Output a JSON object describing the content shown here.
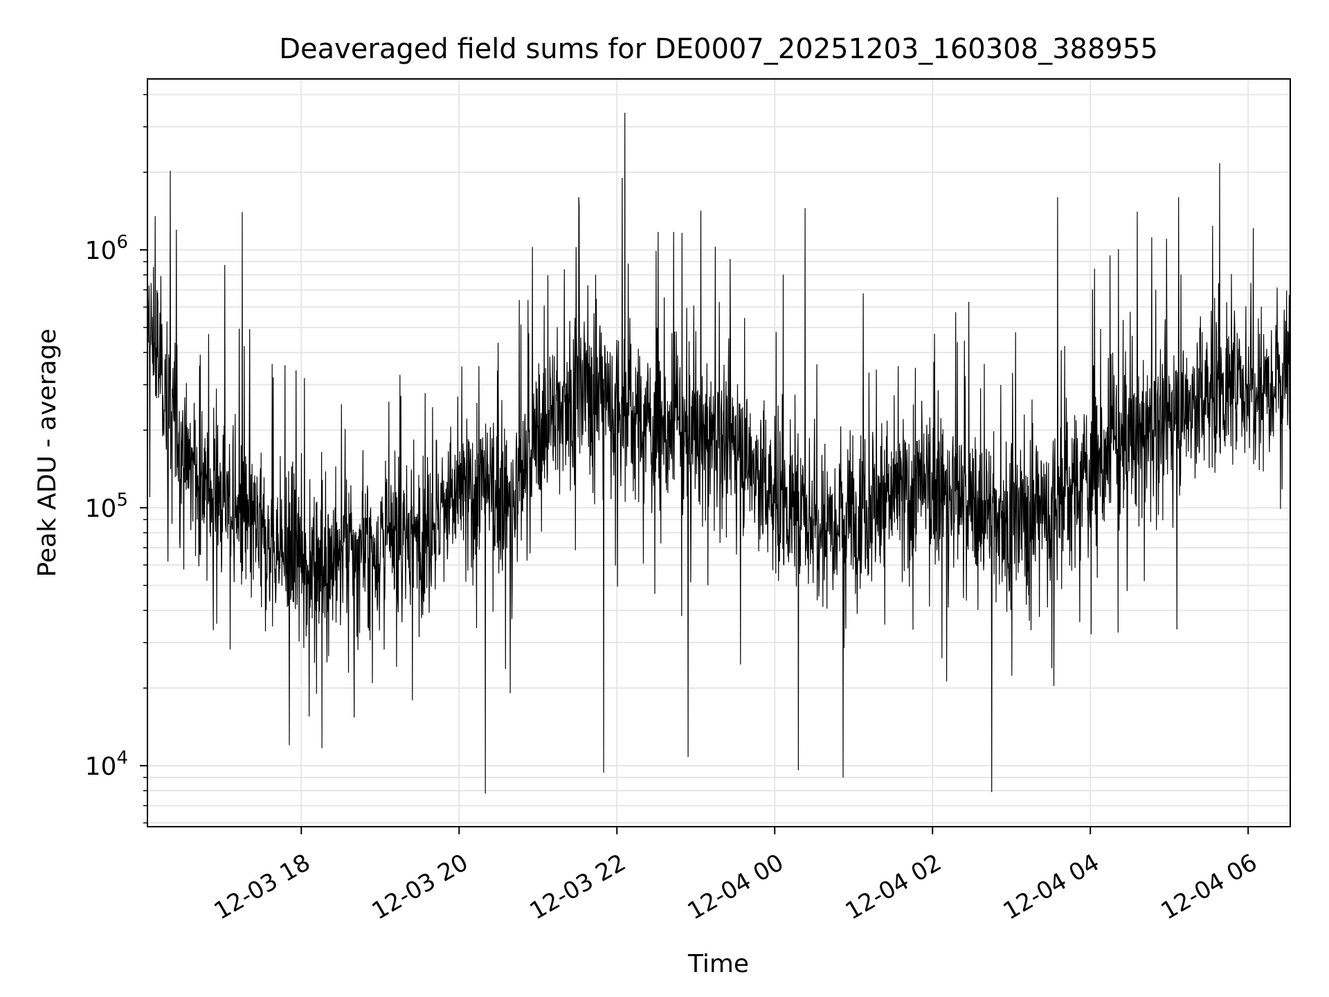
{
  "chart_data": {
    "type": "line",
    "title": "Deaveraged field sums for DE0007_20251203_160308_388955",
    "xlabel": "Time",
    "ylabel": "Peak ADU - average",
    "y_scale": "log",
    "xlim": [
      "2025-12-03 16:03",
      "2025-12-04 06:32"
    ],
    "ylim": [
      5800,
      4600000
    ],
    "x_ticks": [
      {
        "t": "2025-12-03 18:00",
        "label": "12-03 18"
      },
      {
        "t": "2025-12-03 20:00",
        "label": "12-03 20"
      },
      {
        "t": "2025-12-03 22:00",
        "label": "12-03 22"
      },
      {
        "t": "2025-12-04 00:00",
        "label": "12-04 00"
      },
      {
        "t": "2025-12-04 02:00",
        "label": "12-04 02"
      },
      {
        "t": "2025-12-04 04:00",
        "label": "12-04 04"
      },
      {
        "t": "2025-12-04 06:00",
        "label": "12-04 06"
      }
    ],
    "y_ticks": [
      {
        "value": 10000,
        "base": "10",
        "exp": "4"
      },
      {
        "value": 100000,
        "base": "10",
        "exp": "5"
      },
      {
        "value": 1000000,
        "base": "10",
        "exp": "6"
      }
    ],
    "grid": true,
    "line_color": "#000000",
    "series": [
      {
        "x": [
          "2025-12-03 16:03",
          "2025-12-03 16:10",
          "2025-12-03 16:20",
          "2025-12-03 16:30",
          "2025-12-03 16:45",
          "2025-12-03 17:00",
          "2025-12-03 17:15",
          "2025-12-03 17:30",
          "2025-12-03 17:45",
          "2025-12-03 18:00",
          "2025-12-03 18:30",
          "2025-12-03 19:00",
          "2025-12-03 19:30",
          "2025-12-03 20:00",
          "2025-12-03 20:20",
          "2025-12-03 20:40",
          "2025-12-03 21:00",
          "2025-12-03 21:20",
          "2025-12-03 21:40",
          "2025-12-03 22:00",
          "2025-12-03 22:30",
          "2025-12-03 23:00",
          "2025-12-03 23:30",
          "2025-12-04 00:00",
          "2025-12-04 00:30",
          "2025-12-04 01:00",
          "2025-12-04 01:30",
          "2025-12-04 02:00",
          "2025-12-04 02:30",
          "2025-12-04 03:00",
          "2025-12-04 03:30",
          "2025-12-04 04:00",
          "2025-12-04 04:30",
          "2025-12-04 05:00",
          "2025-12-04 05:30",
          "2025-12-04 06:00",
          "2025-12-04 06:32"
        ],
        "y": [
          500000,
          400000,
          250000,
          160000,
          120000,
          110000,
          90000,
          75000,
          65000,
          62000,
          65000,
          70000,
          80000,
          110000,
          120000,
          100000,
          190000,
          260000,
          300000,
          250000,
          200000,
          190000,
          180000,
          110000,
          90000,
          100000,
          110000,
          120000,
          100000,
          90000,
          100000,
          140000,
          180000,
          220000,
          280000,
          300000,
          350000
        ]
      }
    ],
    "extremes": [
      {
        "x": "2025-12-03 22:06",
        "y": 3400000
      },
      {
        "x": "2025-12-03 22:04",
        "y": 1900000
      },
      {
        "x": "2025-12-03 21:31",
        "y": 1600000
      },
      {
        "x": "2025-12-04 03:35",
        "y": 1600000
      },
      {
        "x": "2025-12-04 05:07",
        "y": 1600000
      },
      {
        "x": "2025-12-04 00:23",
        "y": 1450000
      },
      {
        "x": "2025-12-03 17:15",
        "y": 1400000
      },
      {
        "x": "2025-12-03 16:09",
        "y": 1350000
      },
      {
        "x": "2025-12-03 20:20",
        "y": 7800
      },
      {
        "x": "2025-12-04 02:45",
        "y": 7900
      },
      {
        "x": "2025-12-04 00:52",
        "y": 9000
      },
      {
        "x": "2025-12-04 00:18",
        "y": 9600
      },
      {
        "x": "2025-12-03 21:50",
        "y": 9400
      },
      {
        "x": "2025-12-03 17:51",
        "y": 12000
      },
      {
        "x": "2025-12-03 22:54",
        "y": 10800
      }
    ]
  }
}
